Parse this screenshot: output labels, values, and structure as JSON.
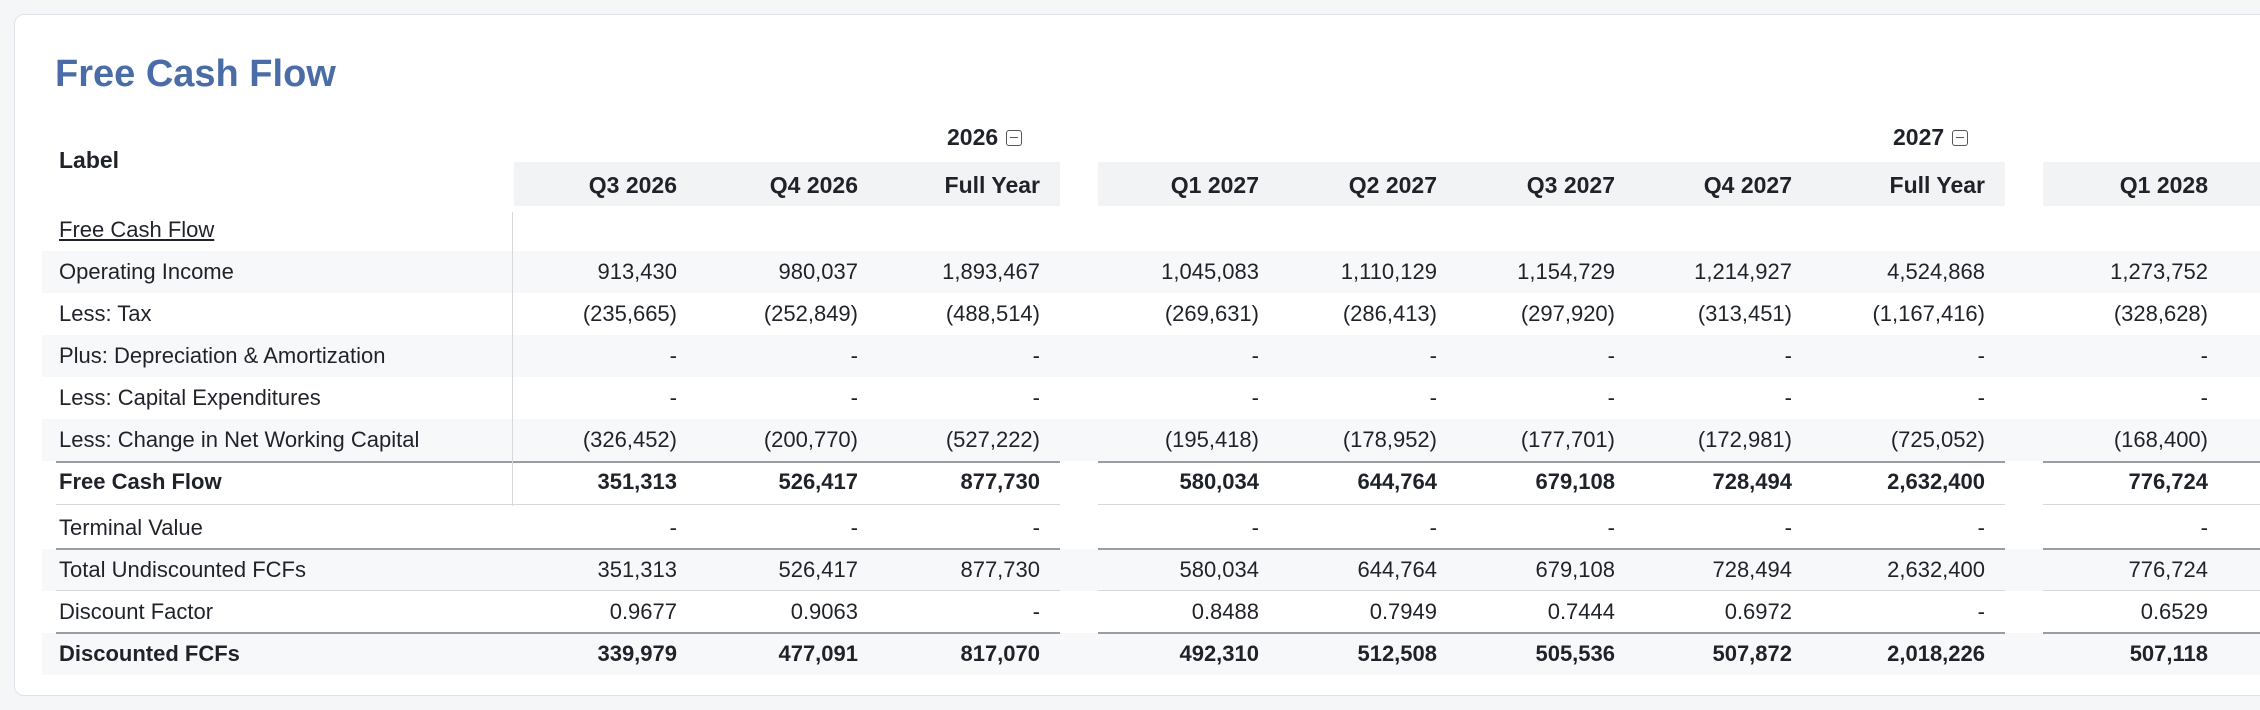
{
  "title": "Free Cash Flow",
  "label_header": "Label",
  "year_groups": [
    {
      "year": "2026"
    },
    {
      "year": "2027"
    }
  ],
  "columns": [
    "Q3 2026",
    "Q4 2026",
    "Full Year",
    "Q1 2027",
    "Q2 2027",
    "Q3 2027",
    "Q4 2027",
    "Full Year",
    "Q1 2028"
  ],
  "rows": [
    {
      "label": "Free Cash Flow",
      "values": [
        "",
        "",
        "",
        "",
        "",
        "",
        "",
        "",
        ""
      ]
    },
    {
      "label": "Operating Income",
      "values": [
        "913,430",
        "980,037",
        "1,893,467",
        "1,045,083",
        "1,110,129",
        "1,154,729",
        "1,214,927",
        "4,524,868",
        "1,273,752"
      ]
    },
    {
      "label": "Less: Tax",
      "values": [
        "(235,665)",
        "(252,849)",
        "(488,514)",
        "(269,631)",
        "(286,413)",
        "(297,920)",
        "(313,451)",
        "(1,167,416)",
        "(328,628)"
      ]
    },
    {
      "label": "Plus: Depreciation & Amortization",
      "values": [
        "-",
        "-",
        "-",
        "-",
        "-",
        "-",
        "-",
        "-",
        "-"
      ]
    },
    {
      "label": "Less: Capital Expenditures",
      "values": [
        "-",
        "-",
        "-",
        "-",
        "-",
        "-",
        "-",
        "-",
        "-"
      ]
    },
    {
      "label": "Less: Change in Net Working Capital",
      "values": [
        "(326,452)",
        "(200,770)",
        "(527,222)",
        "(195,418)",
        "(178,952)",
        "(177,701)",
        "(172,981)",
        "(725,052)",
        "(168,400)"
      ]
    },
    {
      "label": "Free Cash Flow",
      "values": [
        "351,313",
        "526,417",
        "877,730",
        "580,034",
        "644,764",
        "679,108",
        "728,494",
        "2,632,400",
        "776,724"
      ]
    },
    {
      "label": "Terminal Value",
      "values": [
        "-",
        "-",
        "-",
        "-",
        "-",
        "-",
        "-",
        "-",
        "-"
      ]
    },
    {
      "label": "Total Undiscounted FCFs",
      "values": [
        "351,313",
        "526,417",
        "877,730",
        "580,034",
        "644,764",
        "679,108",
        "728,494",
        "2,632,400",
        "776,724"
      ]
    },
    {
      "label": "Discount Factor",
      "values": [
        "0.9677",
        "0.9063",
        "-",
        "0.8488",
        "0.7949",
        "0.7444",
        "0.6972",
        "-",
        "0.6529"
      ]
    },
    {
      "label": "Discounted FCFs",
      "values": [
        "339,979",
        "477,091",
        "817,070",
        "492,310",
        "512,508",
        "505,536",
        "507,872",
        "2,018,226",
        "507,118"
      ]
    }
  ]
}
